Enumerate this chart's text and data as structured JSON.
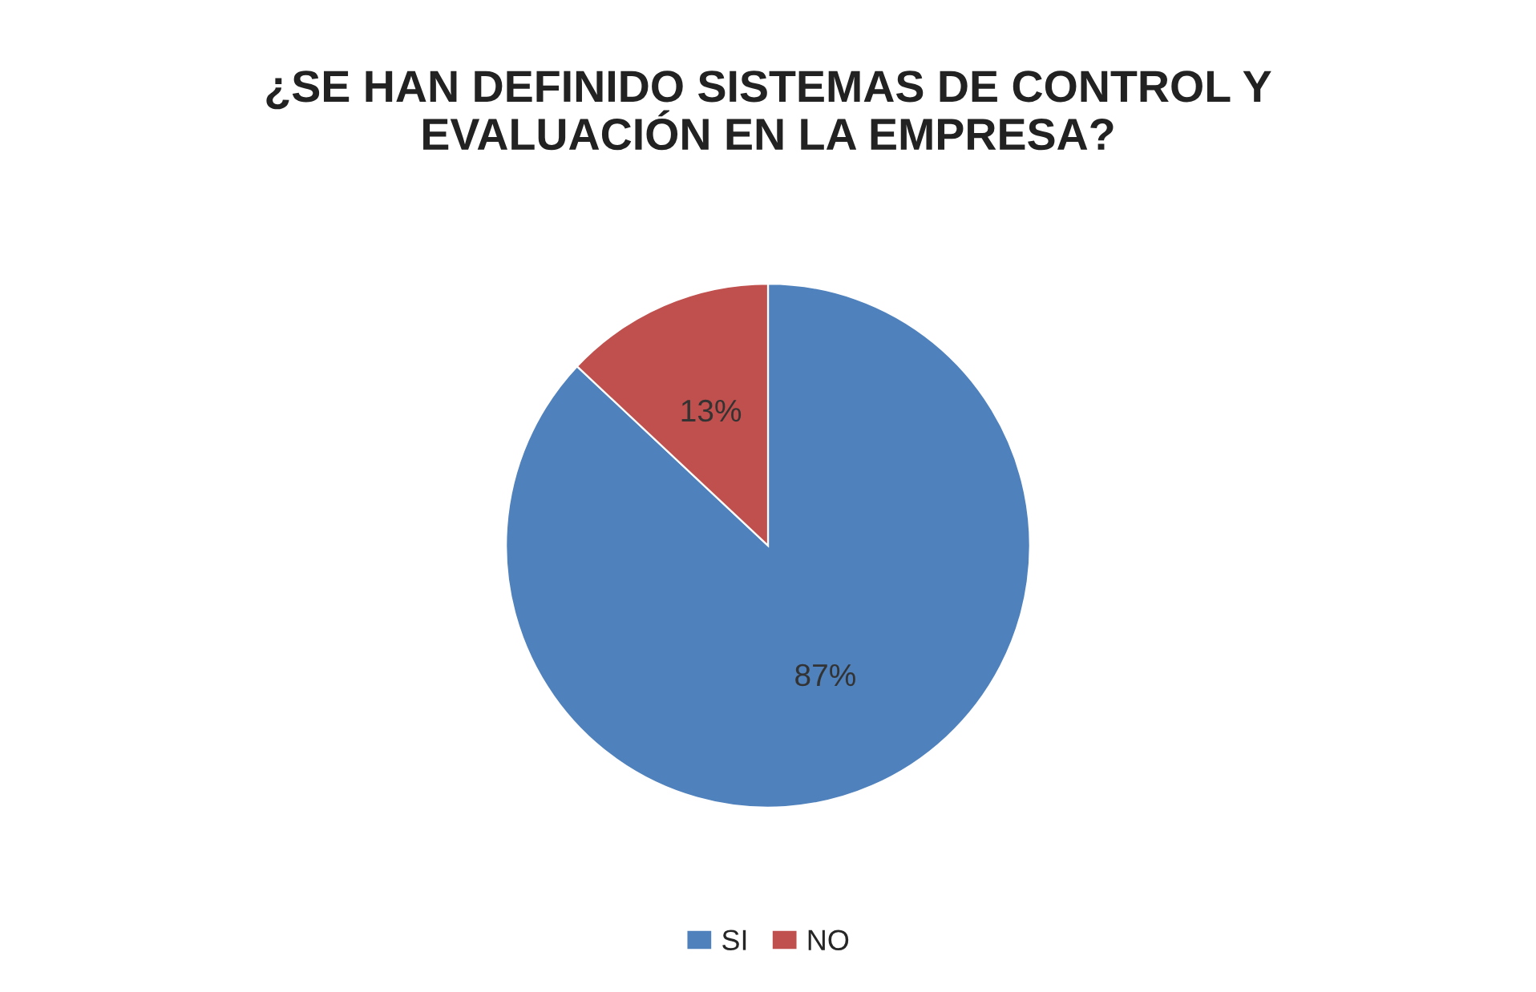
{
  "chart_data": {
    "type": "pie",
    "title": "¿SE HAN DEFINIDO SISTEMAS DE CONTROL Y\nEVALUACIÓN EN LA EMPRESA?",
    "categories": [
      "SI",
      "NO"
    ],
    "values": [
      87,
      13
    ],
    "colors": [
      "#4f81bd",
      "#c0504d"
    ],
    "value_labels": [
      "87%",
      "13%"
    ],
    "legend": "bottom"
  }
}
